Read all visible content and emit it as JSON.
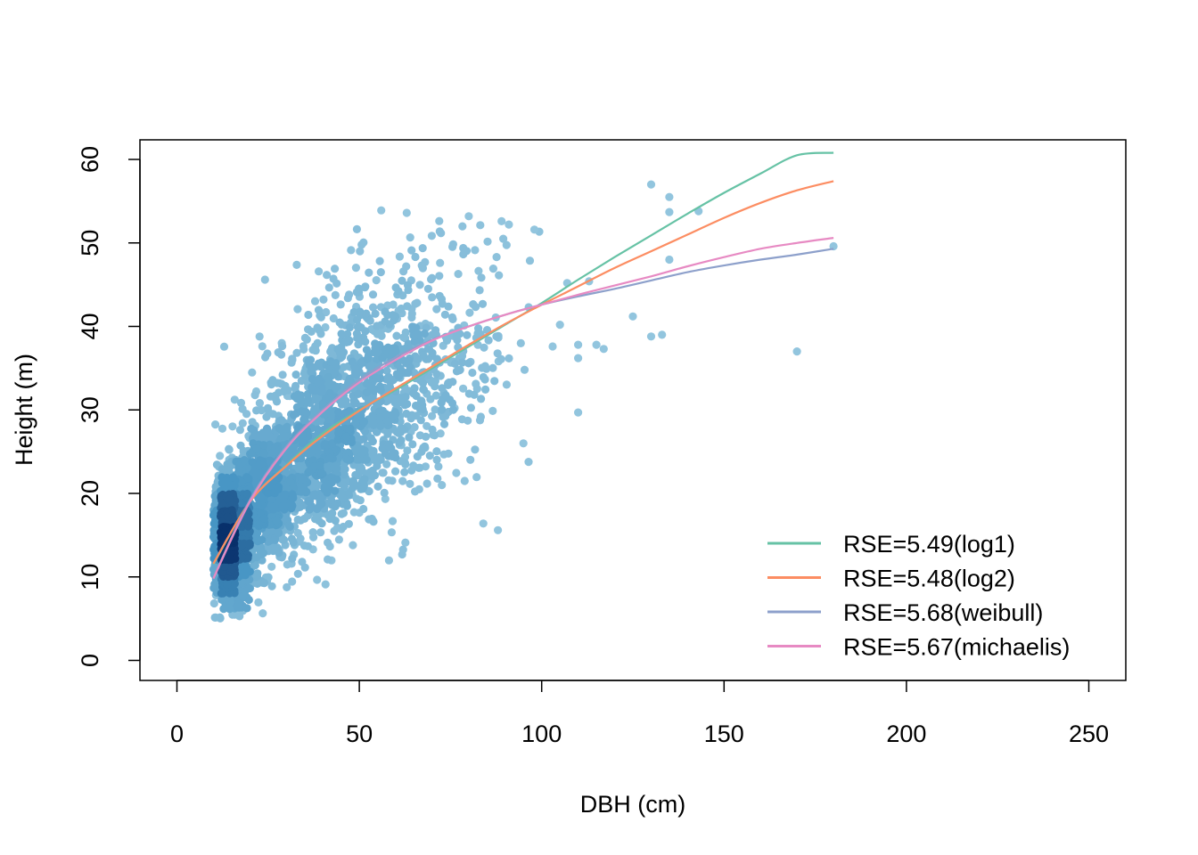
{
  "chart_data": {
    "type": "scatter",
    "title": "",
    "xlabel": "DBH (cm)",
    "ylabel": "Height (m)",
    "xlim": [
      -10,
      260
    ],
    "ylim": [
      -2.3,
      62.3
    ],
    "xticks": [
      0,
      50,
      100,
      150,
      200,
      250
    ],
    "yticks": [
      0,
      10,
      20,
      30,
      40,
      50,
      60
    ],
    "grid": false,
    "legend_position": "bottom-right",
    "point_colors": {
      "light": "#92c5de",
      "mid": "#4393c3",
      "dark": "#08306b"
    },
    "scatter_clusters": [
      {
        "x_mean": 14,
        "x_sd": 3.5,
        "y_mean": 14,
        "y_sd": 4.2,
        "n": 1100,
        "density": "high"
      },
      {
        "x_mean": 24,
        "x_sd": 5.5,
        "y_mean": 20,
        "y_sd": 4.5,
        "n": 650,
        "density": "mid"
      },
      {
        "x_mean": 40,
        "x_sd": 8,
        "y_mean": 26,
        "y_sd": 5.5,
        "n": 700,
        "density": "mid"
      },
      {
        "x_mean": 55,
        "x_sd": 11,
        "y_mean": 33,
        "y_sd": 6.5,
        "n": 550,
        "density": "low"
      },
      {
        "x_mean": 72,
        "x_sd": 14,
        "y_mean": 38,
        "y_sd": 7,
        "n": 220,
        "density": "low"
      }
    ],
    "outliers": [
      [
        130,
        57
      ],
      [
        135,
        55.5
      ],
      [
        135,
        53.7
      ],
      [
        143,
        53.8
      ],
      [
        180,
        49.6
      ],
      [
        135,
        48
      ],
      [
        170,
        37
      ],
      [
        133,
        39
      ],
      [
        130,
        38.8
      ],
      [
        125,
        41.2
      ],
      [
        110,
        29.7
      ],
      [
        110,
        37.8
      ],
      [
        110,
        36.2
      ],
      [
        115,
        37.8
      ],
      [
        117,
        37.3
      ],
      [
        105,
        40.2
      ],
      [
        95,
        26
      ],
      [
        88,
        15.6
      ],
      [
        84,
        16.4
      ],
      [
        107,
        45.2
      ],
      [
        113,
        45.4
      ],
      [
        98,
        51.6
      ],
      [
        91,
        52.2
      ],
      [
        89,
        52.6
      ],
      [
        56,
        53.9
      ],
      [
        63,
        53.6
      ],
      [
        80,
        53.2
      ],
      [
        103,
        37.6
      ]
    ],
    "series": [
      {
        "name": "RSE=5.49(log1)",
        "color": "#66c2a5",
        "x": [
          10,
          20,
          30,
          40,
          50,
          60,
          70,
          80,
          90,
          100,
          110,
          120,
          130,
          140,
          150,
          160,
          170,
          180
        ],
        "y": [
          11.5,
          19.0,
          23.4,
          27.2,
          30.0,
          32.4,
          35.0,
          37.6,
          40.2,
          42.8,
          45.6,
          48.3,
          50.9,
          53.5,
          56.0,
          58.3,
          60.5,
          60.8
        ]
      },
      {
        "name": "RSE=5.48(log2)",
        "color": "#fc8d62",
        "x": [
          10,
          20,
          30,
          40,
          50,
          60,
          70,
          80,
          90,
          100,
          110,
          120,
          130,
          140,
          150,
          160,
          170,
          180
        ],
        "y": [
          11.6,
          19.0,
          23.3,
          26.9,
          29.9,
          32.6,
          35.2,
          37.8,
          40.3,
          42.6,
          44.8,
          47.0,
          49.0,
          51.0,
          53.0,
          54.8,
          56.3,
          57.4
        ]
      },
      {
        "name": "RSE=5.68(weibull)",
        "color": "#8da0cb",
        "x": [
          10,
          20,
          30,
          40,
          50,
          60,
          70,
          80,
          90,
          100,
          110,
          120,
          130,
          140,
          150,
          160,
          170,
          180
        ],
        "y": [
          9.9,
          19.2,
          25.6,
          30.0,
          33.6,
          36.3,
          38.4,
          40.0,
          41.4,
          42.6,
          43.6,
          44.5,
          45.5,
          46.5,
          47.3,
          48.0,
          48.6,
          49.3
        ]
      },
      {
        "name": "RSE=5.67(michaelis)",
        "color": "#e78ac3",
        "x": [
          10,
          20,
          30,
          40,
          50,
          60,
          70,
          80,
          90,
          100,
          110,
          120,
          130,
          140,
          150,
          160,
          170,
          180
        ],
        "y": [
          9.8,
          19.0,
          25.4,
          29.8,
          33.3,
          36.0,
          38.3,
          40.0,
          41.4,
          42.6,
          43.8,
          44.9,
          46.0,
          47.2,
          48.3,
          49.3,
          50.0,
          50.6
        ]
      }
    ]
  }
}
